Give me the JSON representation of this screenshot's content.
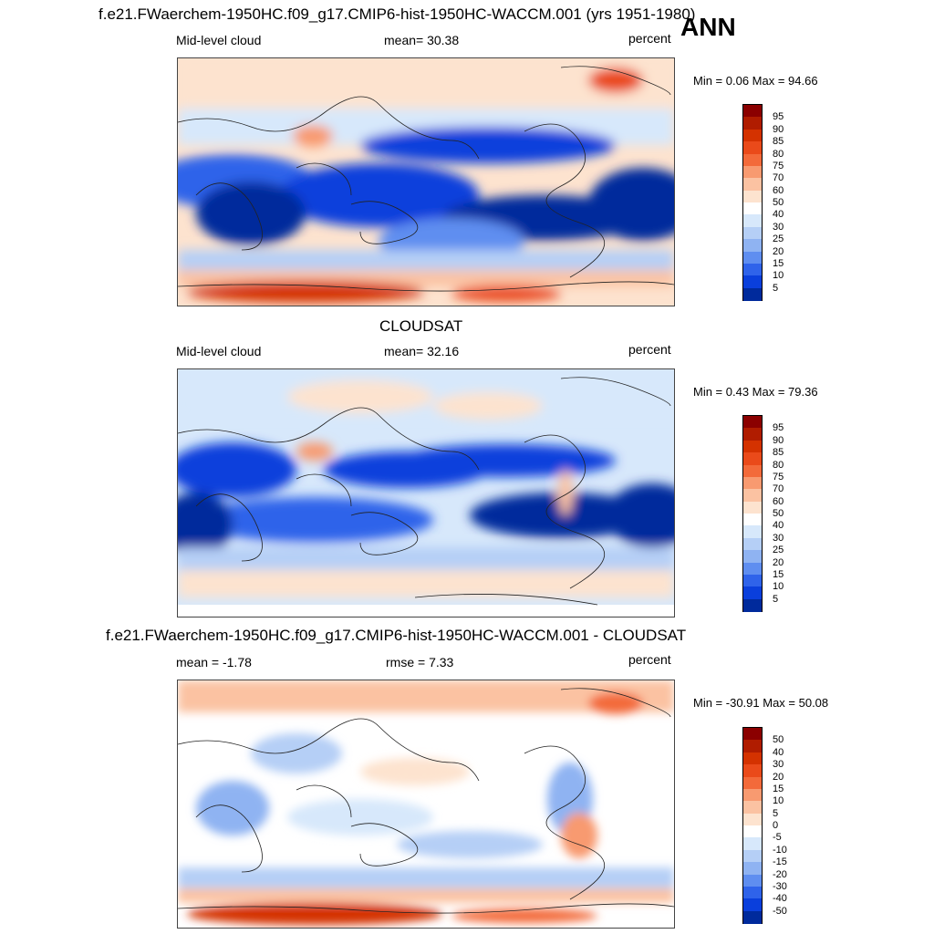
{
  "figure": {
    "title_top": "f.e21.FWaerchem-1950HC.f09_g17.CMIP6-hist-1950HC-WACCM.001 (yrs 1951-1980)",
    "season": "ANN",
    "middle_title": "CLOUDSAT",
    "diff_title": "f.e21.FWaerchem-1950HC.f09_g17.CMIP6-hist-1950HC-WACCM.001 - CLOUDSAT"
  },
  "chart_data": [
    {
      "type": "heatmap",
      "panel": "model",
      "variable_label": "Mid-level cloud",
      "stat_text": "mean=  30.38",
      "units": "percent",
      "minmax_text": "Min =   0.06 Max =  94.66",
      "min": 0.06,
      "max": 94.66,
      "mean": 30.38,
      "colorbar_levels": [
        "95",
        "90",
        "85",
        "80",
        "75",
        "70",
        "60",
        "50",
        "40",
        "30",
        "25",
        "20",
        "15",
        "10",
        "5"
      ],
      "colorbar_colors": [
        "#8b0000",
        "#b01c00",
        "#d43200",
        "#ea4a1a",
        "#f36a3a",
        "#f89a70",
        "#fbc2a2",
        "#fde3cf",
        "#ffffff",
        "#d7e8fb",
        "#b5cff6",
        "#8fb3f2",
        "#5f8ef0",
        "#2f63ea",
        "#0a3fdc",
        "#002a9c"
      ]
    },
    {
      "type": "heatmap",
      "panel": "observation",
      "variable_label": "Mid-level cloud",
      "stat_text": "mean=  32.16",
      "units": "percent",
      "minmax_text": "Min =   0.43 Max =  79.36",
      "min": 0.43,
      "max": 79.36,
      "mean": 32.16,
      "colorbar_levels": [
        "95",
        "90",
        "85",
        "80",
        "75",
        "70",
        "60",
        "50",
        "40",
        "30",
        "25",
        "20",
        "15",
        "10",
        "5"
      ],
      "colorbar_colors": [
        "#8b0000",
        "#b01c00",
        "#d43200",
        "#ea4a1a",
        "#f36a3a",
        "#f89a70",
        "#fbc2a2",
        "#fde3cf",
        "#ffffff",
        "#d7e8fb",
        "#b5cff6",
        "#8fb3f2",
        "#5f8ef0",
        "#2f63ea",
        "#0a3fdc",
        "#002a9c"
      ]
    },
    {
      "type": "heatmap",
      "panel": "difference",
      "variable_label": "mean =  -1.78",
      "stat_text": "rmse =   7.33",
      "units": "percent",
      "minmax_text": "Min = -30.91 Max =  50.08",
      "min": -30.91,
      "max": 50.08,
      "mean": -1.78,
      "rmse": 7.33,
      "colorbar_levels": [
        "50",
        "40",
        "30",
        "20",
        "15",
        "10",
        "5",
        "0",
        "-5",
        "-10",
        "-15",
        "-20",
        "-30",
        "-40",
        "-50"
      ],
      "colorbar_colors": [
        "#8b0000",
        "#b01c00",
        "#d43200",
        "#ea4a1a",
        "#f36a3a",
        "#f89a70",
        "#fbc2a2",
        "#fde3cf",
        "#ffffff",
        "#d7e8fb",
        "#b5cff6",
        "#8fb3f2",
        "#5f8ef0",
        "#2f63ea",
        "#0a3fdc",
        "#002a9c"
      ]
    }
  ]
}
